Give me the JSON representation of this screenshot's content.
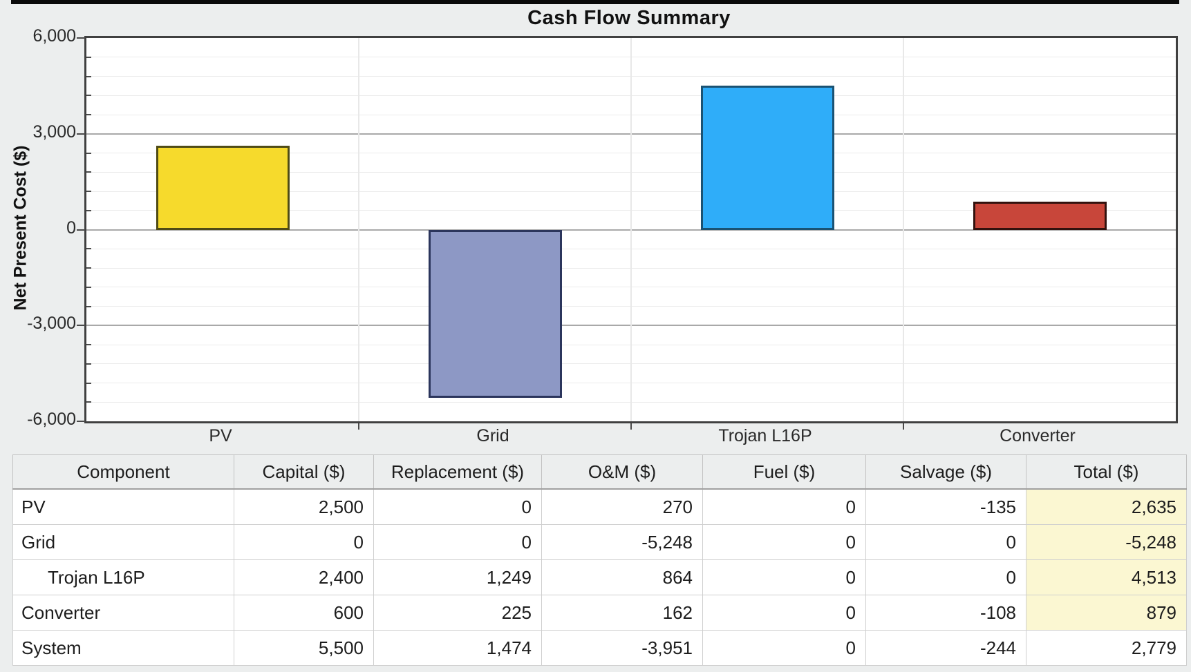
{
  "chart_data": {
    "type": "bar",
    "title": "Cash Flow Summary",
    "ylabel": "Net Present Cost ($)",
    "xlabel": "",
    "categories": [
      "PV",
      "Grid",
      "Trojan L16P",
      "Converter"
    ],
    "values": [
      2635,
      -5248,
      4513,
      879
    ],
    "bar_colors": [
      "#f6da2c",
      "#8d98c5",
      "#2fadf9",
      "#c8463a"
    ],
    "bar_border_colors": [
      "#4f4b15",
      "#2b355c",
      "#1a5273",
      "#33120e"
    ],
    "ylim": [
      -6000,
      6000
    ],
    "yticks": [
      6000,
      3000,
      0,
      -3000,
      -6000
    ],
    "ytick_labels": [
      "6,000",
      "3,000",
      "0",
      "-3,000",
      "-6,000"
    ],
    "minor_tick_step": 600,
    "grid": true,
    "legend": "none"
  },
  "table": {
    "columns": [
      "Component",
      "Capital ($)",
      "Replacement ($)",
      "O&M ($)",
      "Fuel ($)",
      "Salvage ($)",
      "Total ($)"
    ],
    "rows": [
      [
        "PV",
        "2,500",
        "0",
        "270",
        "0",
        "-135",
        "2,635"
      ],
      [
        "Grid",
        "0",
        "0",
        "-5,248",
        "0",
        "0",
        "-5,248"
      ],
      [
        "Trojan L16P",
        "2,400",
        "1,249",
        "864",
        "0",
        "0",
        "4,513"
      ],
      [
        "Converter",
        "600",
        "225",
        "162",
        "0",
        "-108",
        "879"
      ],
      [
        "System",
        "5,500",
        "1,474",
        "-3,951",
        "0",
        "-244",
        "2,779"
      ]
    ],
    "total_highlight_color": "#fbf7d2"
  }
}
